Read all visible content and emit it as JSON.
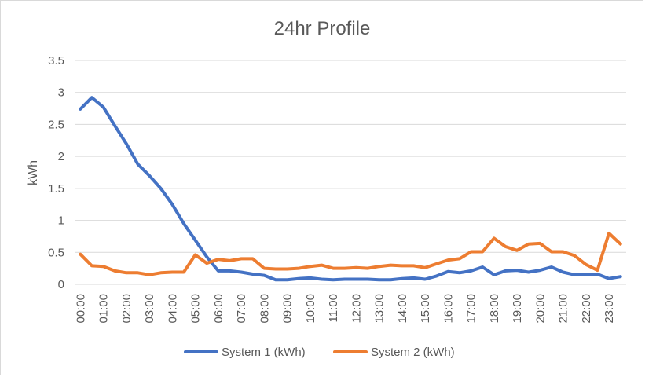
{
  "chart_data": {
    "type": "line",
    "title": "24hr Profile",
    "xlabel": "",
    "ylabel": "kWh",
    "ylim": [
      0,
      3.5
    ],
    "y_ticks": [
      "0",
      "0.5",
      "1",
      "1.5",
      "2",
      "2.5",
      "3",
      "3.5"
    ],
    "grid": true,
    "legend_position": "bottom",
    "x": [
      "00:00",
      "00:30",
      "01:00",
      "01:30",
      "02:00",
      "02:30",
      "03:00",
      "03:30",
      "04:00",
      "04:30",
      "05:00",
      "05:30",
      "06:00",
      "06:30",
      "07:00",
      "07:30",
      "08:00",
      "08:30",
      "09:00",
      "09:30",
      "10:00",
      "10:30",
      "11:00",
      "11:30",
      "12:00",
      "12:30",
      "13:00",
      "13:30",
      "14:00",
      "14:30",
      "15:00",
      "15:30",
      "16:00",
      "16:30",
      "17:00",
      "17:30",
      "18:00",
      "18:30",
      "19:00",
      "19:30",
      "20:00",
      "20:30",
      "21:00",
      "21:30",
      "22:00",
      "22:30",
      "23:00",
      "23:30"
    ],
    "x_tick_labels": [
      "00:00",
      "01:00",
      "02:00",
      "03:00",
      "04:00",
      "05:00",
      "06:00",
      "07:00",
      "08:00",
      "09:00",
      "10:00",
      "11:00",
      "12:00",
      "13:00",
      "14:00",
      "15:00",
      "16:00",
      "17:00",
      "18:00",
      "19:00",
      "20:00",
      "21:00",
      "22:00",
      "23:00"
    ],
    "series": [
      {
        "name": "System 1 (kWh)",
        "color": "#4472c4",
        "values": [
          2.74,
          2.92,
          2.77,
          2.48,
          2.2,
          1.88,
          1.7,
          1.5,
          1.25,
          0.95,
          0.69,
          0.43,
          0.21,
          0.21,
          0.19,
          0.16,
          0.14,
          0.07,
          0.07,
          0.09,
          0.1,
          0.08,
          0.07,
          0.08,
          0.08,
          0.08,
          0.07,
          0.07,
          0.09,
          0.1,
          0.08,
          0.13,
          0.2,
          0.18,
          0.21,
          0.27,
          0.15,
          0.21,
          0.22,
          0.19,
          0.22,
          0.27,
          0.19,
          0.15,
          0.16,
          0.16,
          0.09,
          0.12
        ]
      },
      {
        "name": "System 2 (kWh)",
        "color": "#ed7d31",
        "values": [
          0.47,
          0.29,
          0.28,
          0.21,
          0.18,
          0.18,
          0.15,
          0.18,
          0.19,
          0.19,
          0.46,
          0.33,
          0.39,
          0.37,
          0.4,
          0.4,
          0.25,
          0.24,
          0.24,
          0.25,
          0.28,
          0.3,
          0.25,
          0.25,
          0.26,
          0.25,
          0.28,
          0.3,
          0.29,
          0.29,
          0.26,
          0.32,
          0.38,
          0.4,
          0.51,
          0.51,
          0.72,
          0.59,
          0.53,
          0.63,
          0.64,
          0.51,
          0.51,
          0.45,
          0.31,
          0.22,
          0.8,
          0.63
        ]
      }
    ]
  }
}
